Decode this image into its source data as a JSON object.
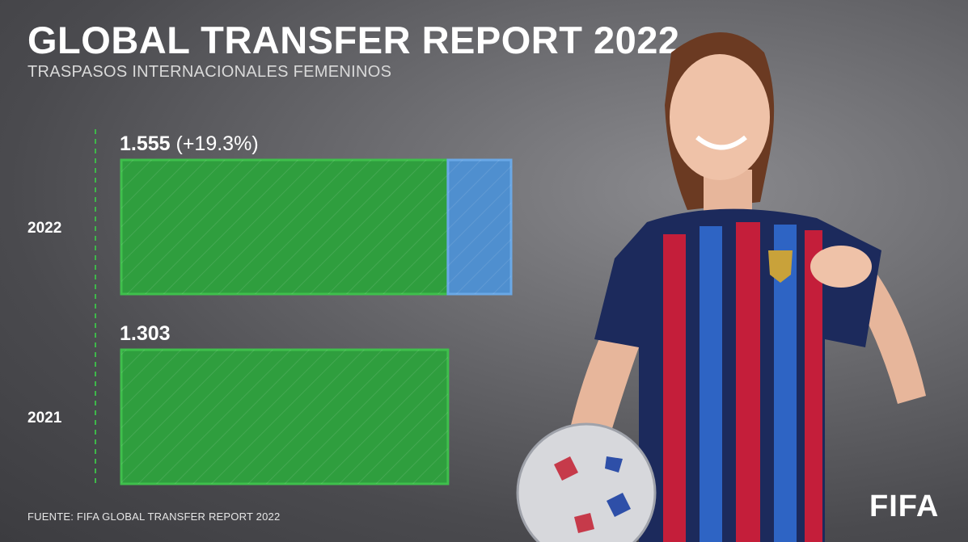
{
  "header": {
    "title": "GLOBAL TRANSFER REPORT 2022",
    "subtitle": "TRASPASOS INTERNACIONALES FEMENINOS"
  },
  "footer": {
    "source": "FUENTE: FIFA GLOBAL TRANSFER REPORT 2022",
    "logo_text": "FIFA"
  },
  "chart_data": {
    "type": "bar",
    "orientation": "horizontal",
    "stacked": true,
    "categories": [
      "2022",
      "2021"
    ],
    "series": [
      {
        "values": [
          1303,
          1303
        ],
        "color": "#2f9e3e"
      },
      {
        "values": [
          252,
          0
        ],
        "color": "#4f8fcf"
      }
    ],
    "data_labels": [
      {
        "value": "1.555",
        "change": "(+19.3%)"
      },
      {
        "value": "1.303",
        "change": ""
      }
    ],
    "xlim": [
      0,
      1555
    ],
    "grid": false,
    "legend": "none"
  }
}
